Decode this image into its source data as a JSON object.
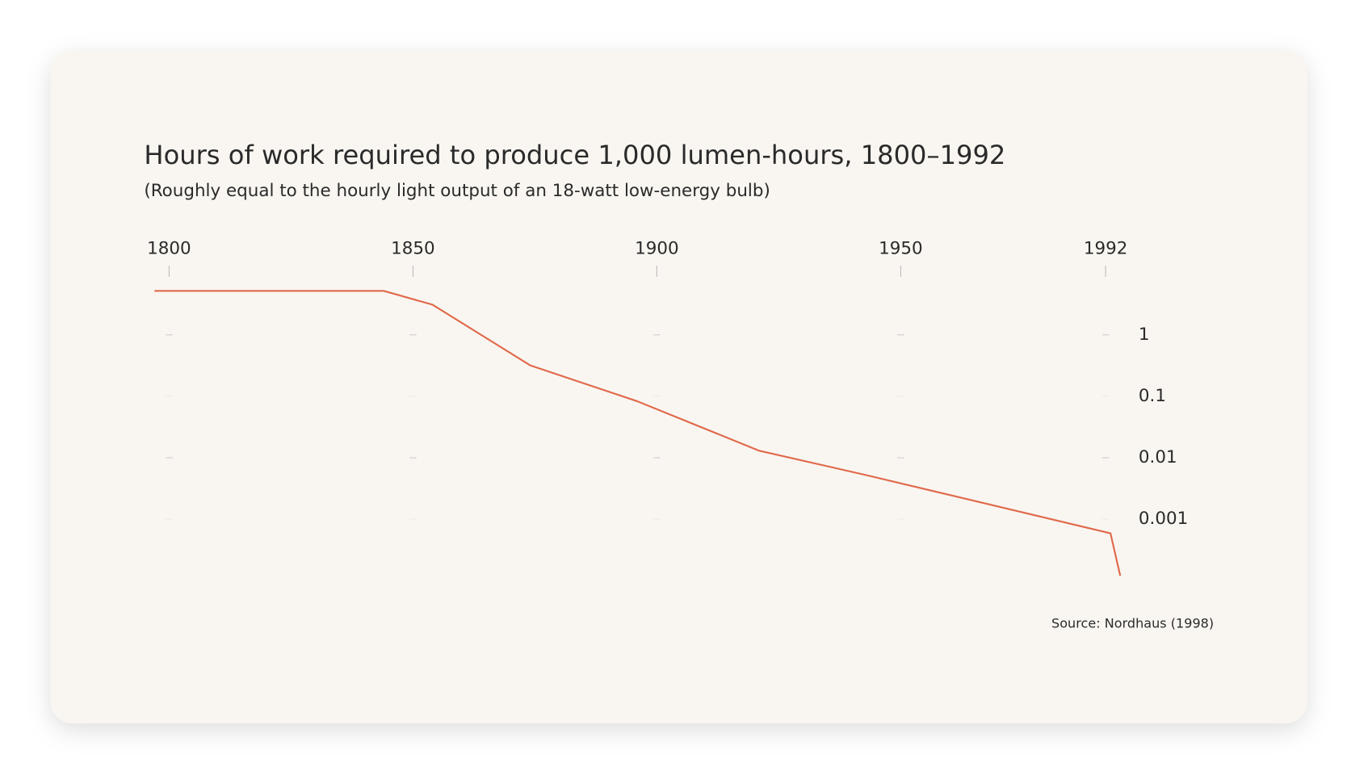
{
  "chart_data": {
    "type": "line",
    "title": "Hours of work required to produce 1,000 lumen-hours, 1800–1992",
    "subtitle": "(Roughly equal to the hourly light output of an 18-watt low-energy bulb)",
    "source": "Source: Nordhaus (1998)",
    "x": [
      1797,
      1844,
      1854,
      1874,
      1896,
      1921,
      1943,
      1993,
      1995
    ],
    "series": [
      {
        "color": "#e0694a",
        "values": [
          5.2,
          5.2,
          3.1,
          0.32,
          0.083,
          0.013,
          0.0052,
          0.00059,
          0.00012
        ]
      }
    ],
    "xlim": [
      1790,
      2000
    ],
    "xticks": [
      1800,
      1850,
      1900,
      1950,
      1992
    ],
    "ylim": [
      0.0001,
      10
    ],
    "yticks": [
      1,
      0.1,
      0.01,
      0.001
    ],
    "yscale": "log",
    "grid": true
  }
}
